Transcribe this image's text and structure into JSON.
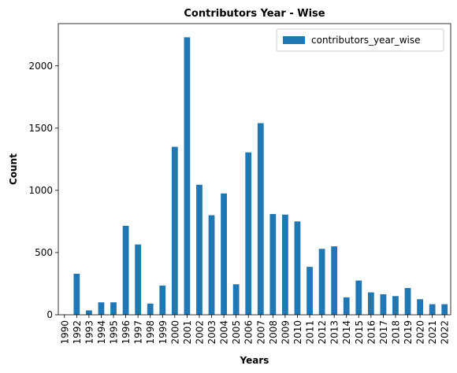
{
  "chart_data": {
    "type": "bar",
    "title": "Contributors Year - Wise",
    "xlabel": "Years",
    "ylabel": "Count",
    "ylim": [
      0,
      2340
    ],
    "yticks": [
      0,
      500,
      1000,
      1500,
      2000
    ],
    "legend_placement": "top-right",
    "grid": false,
    "categories": [
      "1990",
      "1992",
      "1993",
      "1994",
      "1995",
      "1996",
      "1997",
      "1998",
      "1999",
      "2000",
      "2001",
      "2002",
      "2003",
      "2004",
      "2005",
      "2006",
      "2007",
      "2008",
      "2009",
      "2010",
      "2011",
      "2012",
      "2013",
      "2014",
      "2015",
      "2016",
      "2017",
      "2018",
      "2019",
      "2020",
      "2021",
      "2022"
    ],
    "series": [
      {
        "name": "contributors_year_wise",
        "color": "#1f77b4",
        "values": [
          2,
          330,
          35,
          100,
          100,
          715,
          565,
          90,
          235,
          1350,
          2230,
          1045,
          800,
          975,
          245,
          1305,
          1540,
          810,
          805,
          750,
          385,
          530,
          550,
          140,
          275,
          180,
          165,
          150,
          215,
          125,
          85,
          85
        ]
      }
    ]
  }
}
